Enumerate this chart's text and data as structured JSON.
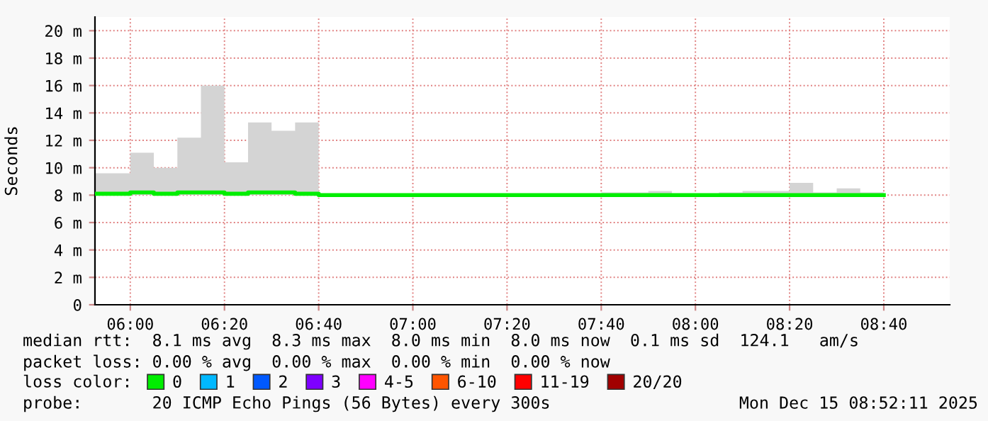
{
  "chart_data": {
    "type": "step",
    "ylabel": "Seconds",
    "x": [
      5.875,
      6,
      6.0833,
      6.1667,
      6.25,
      6.3333,
      6.4167,
      6.5,
      6.5833,
      6.6667,
      6.75,
      6.8333,
      6.9167,
      7,
      7.0833,
      7.1667,
      7.25,
      7.3333,
      7.4167,
      7.5,
      7.5833,
      7.6667,
      7.75,
      7.8333,
      7.9167,
      8,
      8.0833,
      8.1667,
      8.25,
      8.3333,
      8.4167,
      8.5,
      8.5833,
      8.6667
    ],
    "series": [
      {
        "name": "0",
        "color": "#00ee00",
        "values": [
          8.1,
          8.2,
          8.1,
          8.2,
          8.2,
          8.1,
          8.2,
          8.2,
          8.1,
          8.0,
          8.0,
          8.0,
          8.0,
          8.0,
          8.0,
          8.0,
          8.0,
          8.0,
          8.0,
          8.0,
          8.0,
          8.0,
          8.0,
          8.0,
          8.0,
          8.0,
          8.0,
          8.0,
          8.0,
          8.0,
          8.0,
          8.0,
          8.0,
          8.0
        ],
        "lower": [
          8.0,
          8.0,
          8.0,
          8.0,
          8.0,
          8.0,
          8.0,
          8.0,
          8.0,
          8.0,
          8.0,
          8.0,
          8.0,
          8.0,
          8.0,
          8.0,
          8.0,
          8.0,
          8.0,
          8.0,
          8.0,
          8.0,
          8.0,
          8.0,
          8.0,
          8.0,
          8.0,
          8.0,
          8.0,
          8.0,
          8.0,
          8.0,
          8.0,
          8.0
        ],
        "upper": [
          9.6,
          11.1,
          10.0,
          12.2,
          16.0,
          10.4,
          13.3,
          12.7,
          13.3,
          8.1,
          8.1,
          8.1,
          8.1,
          8.1,
          8.1,
          8.1,
          8.1,
          8.1,
          8.1,
          8.1,
          8.1,
          8.2,
          8.2,
          8.3,
          8.1,
          8.1,
          8.2,
          8.3,
          8.3,
          8.9,
          8.2,
          8.5,
          8.2,
          8.2
        ]
      },
      {
        "name": "1",
        "color": "#00b8ff",
        "values": [
          null,
          null,
          null,
          null,
          null,
          null,
          null,
          null,
          null,
          null,
          null,
          null,
          null,
          null,
          null,
          null,
          null,
          null,
          null,
          null,
          null,
          null,
          null,
          null,
          null,
          null,
          null,
          null,
          null,
          null,
          null,
          null,
          null,
          null
        ]
      },
      {
        "name": "2",
        "color": "#0059ff",
        "values": [
          null,
          null,
          null,
          null,
          null,
          null,
          null,
          null,
          null,
          null,
          null,
          null,
          null,
          null,
          null,
          null,
          null,
          null,
          null,
          null,
          null,
          null,
          null,
          null,
          null,
          null,
          null,
          null,
          null,
          null,
          null,
          null,
          null,
          null
        ]
      },
      {
        "name": "3",
        "color": "#7e00ff",
        "values": [
          null,
          null,
          null,
          null,
          null,
          null,
          null,
          null,
          null,
          null,
          null,
          null,
          null,
          null,
          null,
          null,
          null,
          null,
          null,
          null,
          null,
          null,
          null,
          null,
          null,
          null,
          null,
          null,
          null,
          null,
          null,
          null,
          null,
          null
        ]
      },
      {
        "name": "4-5",
        "color": "#ff00ff",
        "values": [
          null,
          null,
          null,
          null,
          null,
          null,
          null,
          null,
          null,
          null,
          null,
          null,
          null,
          null,
          null,
          null,
          null,
          null,
          null,
          null,
          null,
          null,
          null,
          null,
          null,
          null,
          null,
          null,
          null,
          null,
          null,
          null,
          null,
          null
        ]
      },
      {
        "name": "6-10",
        "color": "#ff5500",
        "values": [
          null,
          null,
          null,
          null,
          null,
          null,
          null,
          null,
          null,
          null,
          null,
          null,
          null,
          null,
          null,
          null,
          null,
          null,
          null,
          null,
          null,
          null,
          null,
          null,
          null,
          null,
          null,
          null,
          null,
          null,
          null,
          null,
          null,
          null
        ]
      },
      {
        "name": "11-19",
        "color": "#ff0000",
        "values": [
          null,
          null,
          null,
          null,
          null,
          null,
          null,
          null,
          null,
          null,
          null,
          null,
          null,
          null,
          null,
          null,
          null,
          null,
          null,
          null,
          null,
          null,
          null,
          null,
          null,
          null,
          null,
          null,
          null,
          null,
          null,
          null,
          null,
          null
        ]
      },
      {
        "name": "20/20",
        "color": "#a10000",
        "values": [
          null,
          null,
          null,
          null,
          null,
          null,
          null,
          null,
          null,
          null,
          null,
          null,
          null,
          null,
          null,
          null,
          null,
          null,
          null,
          null,
          null,
          null,
          null,
          null,
          null,
          null,
          null,
          null,
          null,
          null,
          null,
          null,
          null,
          null
        ]
      }
    ],
    "xlim": [
      5.875,
      8.9
    ],
    "xticks": [
      {
        "value": 6,
        "label": "06:00"
      },
      {
        "value": 6.3333,
        "label": "06:20"
      },
      {
        "value": 6.6667,
        "label": "06:40"
      },
      {
        "value": 7,
        "label": "07:00"
      },
      {
        "value": 7.3333,
        "label": "07:20"
      },
      {
        "value": 7.6667,
        "label": "07:40"
      },
      {
        "value": 8,
        "label": "08:00"
      },
      {
        "value": 8.3333,
        "label": "08:20"
      },
      {
        "value": 8.6667,
        "label": "08:40"
      }
    ],
    "ylim": [
      0,
      21
    ],
    "yticks": [
      0,
      {
        "value": 2,
        "label": "2 m"
      },
      {
        "value": 4,
        "label": "4 m"
      },
      {
        "value": 6,
        "label": "6 m"
      },
      {
        "value": 8,
        "label": "8 m"
      },
      {
        "value": 10,
        "label": "10 m"
      },
      {
        "value": 12,
        "label": "12 m"
      },
      {
        "value": 14,
        "label": "14 m"
      },
      {
        "value": 16,
        "label": "16 m"
      },
      {
        "value": 18,
        "label": "18 m"
      },
      {
        "value": 20,
        "label": "20 m"
      }
    ],
    "grid": true,
    "legend": "bottom",
    "line_style": "solid",
    "marker": "none",
    "annotations": [
      "median rtt:  8.1 ms avg  8.3 ms max  8.0 ms min  8.0 ms now  0.1 ms sd  124.1   am/s",
      "packet loss: 0.00 % avg  0.00 % max  0.00 % min  0.00 % now",
      "loss color:",
      "probe:       20 ICMP Echo Pings (56 Bytes) every 300s",
      "Mon Dec 15 08:52:11 2025"
    ]
  }
}
